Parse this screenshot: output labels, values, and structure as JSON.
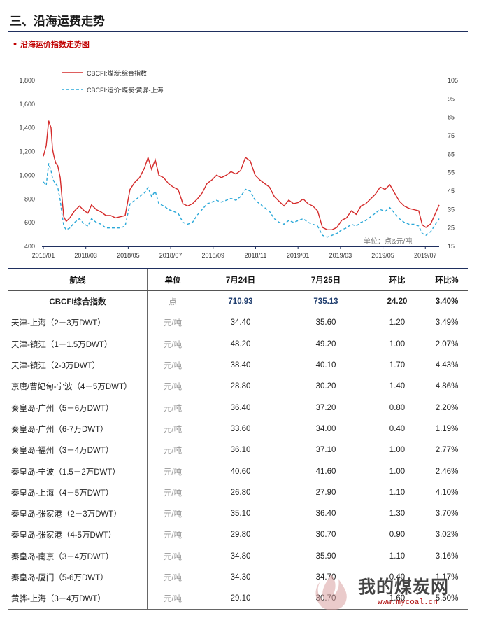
{
  "page": {
    "section_title": "三、沿海运费走势",
    "sub_title": "• 沿海运价指数走势图"
  },
  "chart_data": {
    "type": "line",
    "title": "",
    "unit_note": "单位：点&元/吨",
    "x_ticks": [
      "2018/01",
      "2018/03",
      "2018/05",
      "2018/07",
      "2018/09",
      "2018/11",
      "2019/01",
      "2019/03",
      "2019/05",
      "2019/07"
    ],
    "y_left": {
      "ticks": [
        "400",
        "600",
        "800",
        "1,000",
        "1,200",
        "1,400",
        "1,600",
        "1,800"
      ],
      "range": [
        400,
        1800
      ]
    },
    "y_right": {
      "ticks": [
        "15",
        "25",
        "35",
        "45",
        "55",
        "65",
        "75",
        "85",
        "95",
        "105"
      ],
      "range": [
        15,
        105
      ]
    },
    "legend_position": "top-left",
    "series": [
      {
        "name": "CBCFI:煤炭:综合指数",
        "axis": "left",
        "color": "#d42a2a",
        "style": "solid",
        "values": [
          [
            0,
            1160
          ],
          [
            0.12,
            1250
          ],
          [
            0.22,
            1460
          ],
          [
            0.32,
            1400
          ],
          [
            0.38,
            1220
          ],
          [
            0.45,
            1150
          ],
          [
            0.52,
            1100
          ],
          [
            0.6,
            1080
          ],
          [
            0.7,
            980
          ],
          [
            0.78,
            800
          ],
          [
            0.85,
            650
          ],
          [
            0.95,
            610
          ],
          [
            1.1,
            640
          ],
          [
            1.3,
            700
          ],
          [
            1.5,
            740
          ],
          [
            1.7,
            700
          ],
          [
            1.85,
            680
          ],
          [
            2.0,
            750
          ],
          [
            2.2,
            710
          ],
          [
            2.4,
            690
          ],
          [
            2.6,
            660
          ],
          [
            2.8,
            660
          ],
          [
            3.0,
            640
          ],
          [
            3.2,
            650
          ],
          [
            3.4,
            660
          ],
          [
            3.6,
            880
          ],
          [
            3.8,
            940
          ],
          [
            4.0,
            980
          ],
          [
            4.2,
            1060
          ],
          [
            4.35,
            1150
          ],
          [
            4.5,
            1050
          ],
          [
            4.65,
            1130
          ],
          [
            4.8,
            1000
          ],
          [
            5.0,
            980
          ],
          [
            5.2,
            930
          ],
          [
            5.4,
            900
          ],
          [
            5.6,
            880
          ],
          [
            5.8,
            760
          ],
          [
            6.0,
            740
          ],
          [
            6.2,
            760
          ],
          [
            6.4,
            800
          ],
          [
            6.6,
            850
          ],
          [
            6.8,
            930
          ],
          [
            7.0,
            960
          ],
          [
            7.2,
            1000
          ],
          [
            7.4,
            980
          ],
          [
            7.6,
            1000
          ],
          [
            7.8,
            1030
          ],
          [
            8.0,
            1010
          ],
          [
            8.2,
            1040
          ],
          [
            8.4,
            1150
          ],
          [
            8.6,
            1120
          ],
          [
            8.8,
            1000
          ],
          [
            9.0,
            960
          ],
          [
            9.2,
            930
          ],
          [
            9.4,
            900
          ],
          [
            9.6,
            820
          ],
          [
            9.8,
            780
          ],
          [
            10.0,
            740
          ],
          [
            10.2,
            790
          ],
          [
            10.4,
            760
          ],
          [
            10.6,
            770
          ],
          [
            10.8,
            800
          ],
          [
            11.0,
            760
          ],
          [
            11.2,
            740
          ],
          [
            11.4,
            700
          ],
          [
            11.6,
            560
          ],
          [
            11.8,
            540
          ],
          [
            12.0,
            540
          ],
          [
            12.2,
            560
          ],
          [
            12.4,
            620
          ],
          [
            12.6,
            640
          ],
          [
            12.8,
            700
          ],
          [
            13.0,
            670
          ],
          [
            13.2,
            740
          ],
          [
            13.4,
            760
          ],
          [
            13.6,
            800
          ],
          [
            13.8,
            840
          ],
          [
            14.0,
            900
          ],
          [
            14.2,
            880
          ],
          [
            14.4,
            920
          ],
          [
            14.6,
            850
          ],
          [
            14.8,
            780
          ],
          [
            15.0,
            740
          ],
          [
            15.2,
            720
          ],
          [
            15.4,
            710
          ],
          [
            15.6,
            700
          ],
          [
            15.75,
            580
          ],
          [
            15.9,
            560
          ],
          [
            16.1,
            590
          ],
          [
            16.3,
            680
          ],
          [
            16.45,
            750
          ]
        ]
      },
      {
        "name": "CBCFI:运价:煤炭:黄骅-上海",
        "axis": "right",
        "color": "#2aa8d8",
        "style": "dashed",
        "values": [
          [
            0,
            50
          ],
          [
            0.12,
            48
          ],
          [
            0.22,
            60
          ],
          [
            0.32,
            56
          ],
          [
            0.38,
            52
          ],
          [
            0.45,
            50
          ],
          [
            0.52,
            49
          ],
          [
            0.6,
            47
          ],
          [
            0.7,
            40
          ],
          [
            0.78,
            32
          ],
          [
            0.85,
            26
          ],
          [
            0.95,
            24
          ],
          [
            1.1,
            25
          ],
          [
            1.3,
            28
          ],
          [
            1.5,
            30
          ],
          [
            1.7,
            27
          ],
          [
            1.85,
            26
          ],
          [
            2.0,
            30
          ],
          [
            2.2,
            28
          ],
          [
            2.4,
            27
          ],
          [
            2.6,
            25
          ],
          [
            2.8,
            25
          ],
          [
            3.0,
            25
          ],
          [
            3.2,
            25
          ],
          [
            3.4,
            26
          ],
          [
            3.6,
            38
          ],
          [
            3.8,
            40
          ],
          [
            4.0,
            42
          ],
          [
            4.2,
            44
          ],
          [
            4.35,
            47
          ],
          [
            4.5,
            42
          ],
          [
            4.65,
            45
          ],
          [
            4.8,
            38
          ],
          [
            5.0,
            37
          ],
          [
            5.2,
            35
          ],
          [
            5.4,
            34
          ],
          [
            5.6,
            33
          ],
          [
            5.8,
            28
          ],
          [
            6.0,
            27
          ],
          [
            6.2,
            28
          ],
          [
            6.4,
            32
          ],
          [
            6.6,
            35
          ],
          [
            6.8,
            38
          ],
          [
            7.0,
            39
          ],
          [
            7.2,
            40
          ],
          [
            7.4,
            39
          ],
          [
            7.6,
            40
          ],
          [
            7.8,
            41
          ],
          [
            8.0,
            40
          ],
          [
            8.2,
            42
          ],
          [
            8.4,
            46
          ],
          [
            8.6,
            45
          ],
          [
            8.8,
            40
          ],
          [
            9.0,
            38
          ],
          [
            9.2,
            36
          ],
          [
            9.4,
            34
          ],
          [
            9.6,
            30
          ],
          [
            9.8,
            28
          ],
          [
            10.0,
            27
          ],
          [
            10.2,
            29
          ],
          [
            10.4,
            28
          ],
          [
            10.6,
            29
          ],
          [
            10.8,
            30
          ],
          [
            11.0,
            28
          ],
          [
            11.2,
            27
          ],
          [
            11.4,
            26
          ],
          [
            11.6,
            21
          ],
          [
            11.8,
            20
          ],
          [
            12.0,
            21
          ],
          [
            12.2,
            22
          ],
          [
            12.4,
            24
          ],
          [
            12.6,
            25
          ],
          [
            12.8,
            27
          ],
          [
            13.0,
            26
          ],
          [
            13.2,
            28
          ],
          [
            13.4,
            29
          ],
          [
            13.6,
            31
          ],
          [
            13.8,
            33
          ],
          [
            14.0,
            35
          ],
          [
            14.2,
            34
          ],
          [
            14.4,
            36
          ],
          [
            14.6,
            33
          ],
          [
            14.8,
            30
          ],
          [
            15.0,
            28
          ],
          [
            15.2,
            27
          ],
          [
            15.4,
            27
          ],
          [
            15.6,
            26
          ],
          [
            15.75,
            22
          ],
          [
            15.9,
            21
          ],
          [
            16.1,
            23
          ],
          [
            16.3,
            27
          ],
          [
            16.45,
            30
          ]
        ]
      }
    ]
  },
  "table": {
    "headers": [
      "航线",
      "单位",
      "7月24日",
      "7月25日",
      "环比",
      "环比%"
    ],
    "index_row": [
      "CBCFI综合指数",
      "点",
      "710.93",
      "735.13",
      "24.20",
      "3.40%"
    ],
    "rows": [
      [
        "天津-上海（2－3万DWT）",
        "元/吨",
        "34.40",
        "35.60",
        "1.20",
        "3.49%"
      ],
      [
        "天津-镇江（1－1.5万DWT）",
        "元/吨",
        "48.20",
        "49.20",
        "1.00",
        "2.07%"
      ],
      [
        "天津-镇江（2-3万DWT）",
        "元/吨",
        "38.40",
        "40.10",
        "1.70",
        "4.43%"
      ],
      [
        "京唐/曹妃甸-宁波（4－5万DWT）",
        "元/吨",
        "28.80",
        "30.20",
        "1.40",
        "4.86%"
      ],
      [
        "秦皇岛-广州（5－6万DWT）",
        "元/吨",
        "36.40",
        "37.20",
        "0.80",
        "2.20%"
      ],
      [
        "秦皇岛-广州（6-7万DWT）",
        "元/吨",
        "33.60",
        "34.00",
        "0.40",
        "1.19%"
      ],
      [
        "秦皇岛-福州（3－4万DWT）",
        "元/吨",
        "36.10",
        "37.10",
        "1.00",
        "2.77%"
      ],
      [
        "秦皇岛-宁波（1.5－2万DWT）",
        "元/吨",
        "40.60",
        "41.60",
        "1.00",
        "2.46%"
      ],
      [
        "秦皇岛-上海（4－5万DWT）",
        "元/吨",
        "26.80",
        "27.90",
        "1.10",
        "4.10%"
      ],
      [
        "秦皇岛-张家港（2－3万DWT）",
        "元/吨",
        "35.10",
        "36.40",
        "1.30",
        "3.70%"
      ],
      [
        "秦皇岛-张家港（4-5万DWT）",
        "元/吨",
        "29.80",
        "30.70",
        "0.90",
        "3.02%"
      ],
      [
        "秦皇岛-南京（3－4万DWT）",
        "元/吨",
        "34.80",
        "35.90",
        "1.10",
        "3.16%"
      ],
      [
        "秦皇岛-厦门（5-6万DWT）",
        "元/吨",
        "34.30",
        "34.70",
        "0.40",
        "1.17%"
      ],
      [
        "黄骅-上海（3－4万DWT）",
        "元/吨",
        "29.10",
        "30.70",
        "1.60",
        "5.50%"
      ]
    ]
  },
  "watermark": {
    "text": "我的煤炭网",
    "url": "www.mycoal.cn"
  }
}
